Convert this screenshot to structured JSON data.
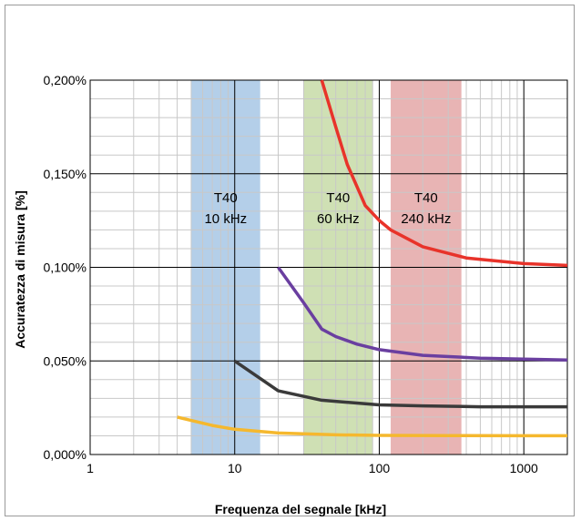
{
  "chart_data": {
    "type": "line",
    "title": "",
    "xlabel": "Frequenza del segnale [kHz]",
    "ylabel": "Accuratezza di misura [%]",
    "x_scale": "log",
    "xlim": [
      1,
      2000
    ],
    "ylim": [
      0,
      0.2
    ],
    "grid": true,
    "x_tick_labels": [
      "1",
      "10",
      "100",
      "1000"
    ],
    "x_ticks": [
      1,
      10,
      100,
      1000
    ],
    "y_tick_labels": [
      "0,000%",
      "0,050%",
      "0,100%",
      "0,150%",
      "0,200%"
    ],
    "y_ticks": [
      0,
      0.05,
      0.1,
      0.15,
      0.2
    ],
    "bands": [
      {
        "label_line1": "T40",
        "label_line2": "10 kHz",
        "x_range": [
          5,
          15
        ],
        "color": "#b4cfe9"
      },
      {
        "label_line1": "T40",
        "label_line2": "60 kHz",
        "x_range": [
          30,
          90
        ],
        "color": "#cfe0b4"
      },
      {
        "label_line1": "T40",
        "label_line2": "240 kHz",
        "x_range": [
          120,
          370
        ],
        "color": "#e8b4b4"
      }
    ],
    "series": [
      {
        "color": "#e8332a",
        "x": [
          40,
          50,
          60,
          80,
          100,
          120,
          200,
          400,
          1000,
          2000
        ],
        "y": [
          0.2,
          0.175,
          0.155,
          0.133,
          0.125,
          0.12,
          0.111,
          0.105,
          0.102,
          0.101
        ]
      },
      {
        "color": "#6a3fa0",
        "x": [
          20,
          30,
          40,
          50,
          70,
          100,
          200,
          500,
          1000,
          2000
        ],
        "y": [
          0.1,
          0.081,
          0.067,
          0.063,
          0.059,
          0.056,
          0.053,
          0.0515,
          0.051,
          0.0505
        ]
      },
      {
        "color": "#3a3a3a",
        "x": [
          10,
          20,
          40,
          100,
          200,
          500,
          1000,
          2000
        ],
        "y": [
          0.05,
          0.034,
          0.029,
          0.0265,
          0.026,
          0.0255,
          0.0255,
          0.0255
        ]
      },
      {
        "color": "#f5b82e",
        "x": [
          4,
          7,
          10,
          20,
          50,
          100,
          300,
          1000,
          2000
        ],
        "y": [
          0.02,
          0.0155,
          0.0135,
          0.0115,
          0.0105,
          0.0102,
          0.0101,
          0.01,
          0.01
        ]
      }
    ]
  }
}
